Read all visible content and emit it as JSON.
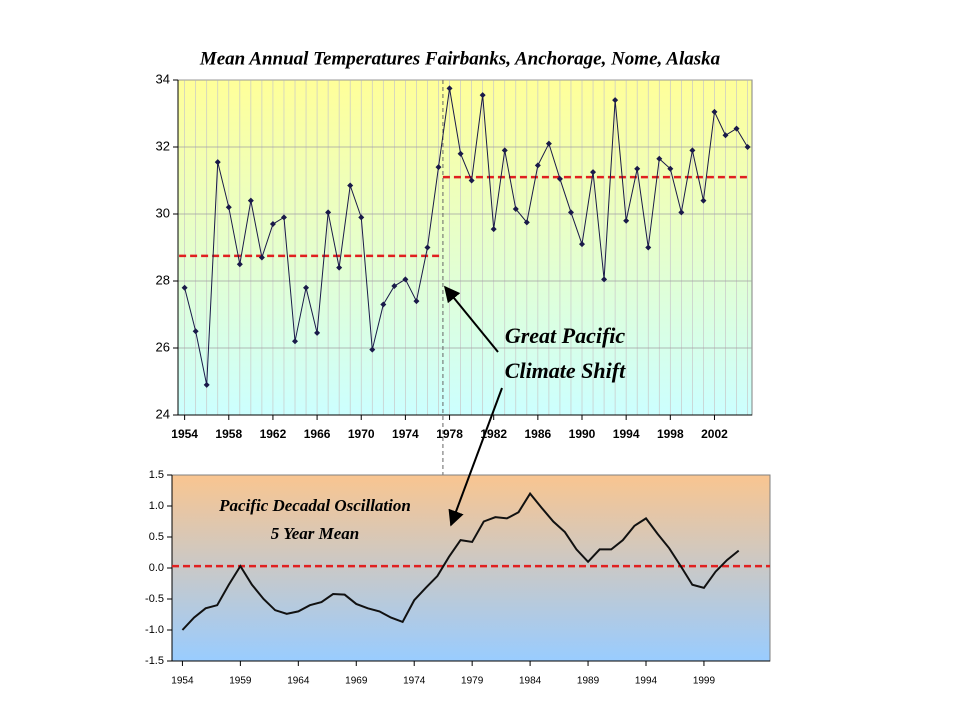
{
  "chart_data": [
    {
      "type": "line",
      "title": "Mean Annual Temperatures Fairbanks, Anchorage, Nome, Alaska",
      "x": [
        1954,
        1955,
        1956,
        1957,
        1958,
        1959,
        1960,
        1961,
        1962,
        1963,
        1964,
        1965,
        1966,
        1967,
        1968,
        1969,
        1970,
        1971,
        1972,
        1973,
        1974,
        1975,
        1976,
        1977,
        1978,
        1979,
        1980,
        1981,
        1982,
        1983,
        1984,
        1985,
        1986,
        1987,
        1988,
        1989,
        1990,
        1991,
        1992,
        1993,
        1994,
        1995,
        1996,
        1997,
        1998,
        1999,
        2000,
        2001,
        2002,
        2003,
        2004,
        2005
      ],
      "values": [
        27.8,
        26.5,
        24.9,
        31.55,
        30.2,
        28.5,
        30.4,
        28.7,
        29.7,
        29.9,
        26.2,
        27.8,
        26.45,
        30.05,
        28.4,
        30.85,
        29.9,
        25.95,
        27.3,
        27.85,
        28.05,
        27.4,
        29.0,
        31.4,
        33.75,
        31.8,
        31.0,
        33.55,
        29.55,
        31.9,
        30.15,
        29.75,
        31.45,
        32.1,
        31.05,
        30.05,
        29.1,
        31.25,
        28.05,
        33.4,
        29.8,
        31.35,
        29.0,
        31.65,
        31.35,
        30.05,
        31.9,
        30.4,
        33.05,
        32.35,
        32.55,
        32.0
      ],
      "color": "#1a1a4a",
      "markers": "diamond",
      "xlim": [
        1953.4,
        2005.4
      ],
      "ylim": [
        24,
        34
      ],
      "xticks": [
        1954,
        1958,
        1962,
        1966,
        1970,
        1974,
        1978,
        1982,
        1986,
        1990,
        1994,
        1998,
        2002
      ],
      "yticks": [
        24,
        26,
        28,
        30,
        32,
        34
      ],
      "grid": true,
      "background": [
        "#ffff99",
        "#ccffff"
      ],
      "reference_lines": [
        {
          "y": 28.75,
          "x": [
            1953.5,
            1977.4
          ]
        },
        {
          "y": 31.1,
          "x": [
            1977.4,
            2005.3
          ]
        }
      ],
      "reference_color": "#e02020",
      "divider_x": 1977.4,
      "annotation": [
        "Great Pacific",
        "Climate Shift"
      ]
    },
    {
      "type": "line",
      "title": "Pacific Decadal Oscillation",
      "subtitle": "5 Year Mean",
      "x": [
        1954,
        1955,
        1956,
        1957,
        1958,
        1959,
        1960,
        1961,
        1962,
        1963,
        1964,
        1965,
        1966,
        1967,
        1968,
        1969,
        1970,
        1971,
        1972,
        1973,
        1974,
        1975,
        1976,
        1977,
        1978,
        1979,
        1980,
        1981,
        1982,
        1983,
        1984,
        1985,
        1986,
        1987,
        1988,
        1989,
        1990,
        1991,
        1992,
        1993,
        1994,
        1995,
        1996,
        1997,
        1998,
        1999,
        2000,
        2001,
        2002
      ],
      "values": [
        -1.0,
        -0.8,
        -0.65,
        -0.6,
        -0.27,
        0.03,
        -0.27,
        -0.5,
        -0.68,
        -0.74,
        -0.7,
        -0.6,
        -0.55,
        -0.42,
        -0.43,
        -0.58,
        -0.65,
        -0.7,
        -0.8,
        -0.87,
        -0.52,
        -0.32,
        -0.13,
        0.18,
        0.45,
        0.42,
        0.75,
        0.82,
        0.8,
        0.9,
        1.2,
        0.97,
        0.75,
        0.58,
        0.3,
        0.1,
        0.3,
        0.3,
        0.45,
        0.68,
        0.8,
        0.55,
        0.32,
        0.03,
        -0.27,
        -0.32,
        -0.06,
        0.13,
        0.28
      ],
      "color": "#111111",
      "markers": "none",
      "xlim": [
        1953.1,
        2004.7
      ],
      "ylim": [
        -1.5,
        1.5
      ],
      "xticks": [
        1954,
        1959,
        1964,
        1969,
        1974,
        1979,
        1984,
        1989,
        1994,
        1999
      ],
      "yticks": [
        1.5,
        {
          "value": 1.0,
          "label": "1.0"
        },
        0.5,
        {
          "value": 0.0,
          "label": "0.0"
        },
        -0.5,
        {
          "value": -1.0,
          "label": "-1.0"
        },
        -1.5
      ],
      "grid": false,
      "background": [
        "#f9c590",
        "#99ccff"
      ],
      "reference_lines": [
        {
          "y": 0.03,
          "x": [
            1953.1,
            2004.7
          ]
        }
      ],
      "reference_color": "#e02020"
    }
  ]
}
